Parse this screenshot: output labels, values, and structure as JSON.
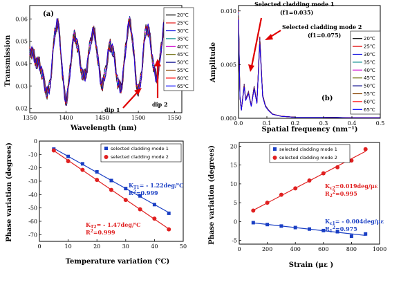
{
  "colors": {
    "c20": "#000000",
    "c25": "#e00000",
    "c30": "#0000dd",
    "c35": "#008888",
    "c40": "#cc00cc",
    "c45": "#666600",
    "c50": "#000088",
    "c55": "#884400",
    "c60": "#ff0000",
    "c65": "#0000ff",
    "mode1": "#1a3fc4",
    "mode2": "#e02020",
    "arrow": "#e00000"
  },
  "temperature_legend": [
    "20℃",
    "25℃",
    "30℃",
    "35℃",
    "40℃",
    "45℃",
    "50℃",
    "55℃",
    "60℃",
    "65℃"
  ],
  "chart_data": [
    {
      "panel": "a",
      "type": "line",
      "panel_label": "(a)",
      "xlabel": "Wavelength (nm)",
      "ylabel": "Transmission",
      "xlim": [
        1350,
        1560
      ],
      "ylim": [
        0.018,
        0.066
      ],
      "xticks": [
        "1350",
        "1400",
        "1450",
        "1500",
        "1550"
      ],
      "yticks": [
        "0.02",
        "0.03",
        "0.04",
        "0.05",
        "0.06"
      ],
      "legend": "top-right",
      "annotations": [
        "dip 1",
        "dip 2"
      ],
      "series": [
        {
          "name": "20℃",
          "x": [
            1350,
            1362,
            1375,
            1388,
            1400,
            1412,
            1425,
            1438,
            1450,
            1462,
            1475,
            1488,
            1500,
            1512,
            1525,
            1538,
            1550
          ],
          "y": [
            0.046,
            0.04,
            0.027,
            0.058,
            0.024,
            0.052,
            0.034,
            0.054,
            0.031,
            0.048,
            0.029,
            0.058,
            0.028,
            0.056,
            0.034,
            0.06,
            0.033
          ]
        }
      ]
    },
    {
      "panel": "b",
      "type": "line",
      "panel_label": "(b)",
      "xlabel": "Spatial frequency (nm⁻¹)",
      "ylabel": "Amplitude",
      "xlim": [
        0,
        0.5
      ],
      "ylim": [
        0,
        0.0105
      ],
      "xticks": [
        "0.0",
        "0.1",
        "0.2",
        "0.3",
        "0.4",
        "0.5"
      ],
      "yticks": [
        "0.000",
        "0.005",
        "0.010"
      ],
      "legend": "top-right",
      "annotations": [
        {
          "line1": "Selected cladding mode 1",
          "line2": "(f1=0.035)"
        },
        {
          "line1": "Selected cladding mode 2",
          "line2": "(f1=0.075)"
        }
      ],
      "series": [
        {
          "name": "20℃",
          "x": [
            0,
            0.005,
            0.01,
            0.02,
            0.025,
            0.035,
            0.045,
            0.055,
            0.065,
            0.075,
            0.085,
            0.095,
            0.105,
            0.12,
            0.15,
            0.2,
            0.3,
            0.4,
            0.5
          ],
          "y": [
            0.0101,
            0.002,
            0.0008,
            0.0032,
            0.0018,
            0.0025,
            0.0012,
            0.003,
            0.0015,
            0.0076,
            0.0022,
            0.0012,
            0.0008,
            0.0004,
            0.0002,
            0.0001,
            0.0001,
            5e-05,
            5e-05
          ]
        }
      ]
    },
    {
      "panel": "c",
      "type": "scatter",
      "xlabel": "Temperature variation (℃)",
      "ylabel": "Phase variation (degrees)",
      "xlim": [
        0,
        50
      ],
      "ylim": [
        -75,
        0
      ],
      "xticks": [
        "0",
        "10",
        "20",
        "30",
        "40",
        "50"
      ],
      "yticks": [
        "0",
        "-10",
        "-20",
        "-30",
        "-40",
        "-50",
        "-60",
        "-70"
      ],
      "legend": "top-right",
      "series": [
        {
          "name": "selected cladding mode 1",
          "marker": "square",
          "x": [
            5,
            10,
            15,
            20,
            25,
            30,
            35,
            40,
            45
          ],
          "y": [
            -6,
            -11.5,
            -17,
            -23,
            -29.5,
            -35.5,
            -41,
            -47.5,
            -54
          ]
        },
        {
          "name": "selected cladding mode 2",
          "marker": "circle",
          "x": [
            5,
            10,
            15,
            20,
            25,
            30,
            35,
            40,
            45
          ],
          "y": [
            -7,
            -15,
            -21.5,
            -29,
            -36.5,
            -44,
            -51,
            -58,
            -66
          ]
        }
      ],
      "annotations": [
        {
          "sub": "T1",
          "text": "= - 1.22deg/℃",
          "r2": "=0.999"
        },
        {
          "sub": "T2",
          "text": "= - 1.47deg/℃",
          "r2": "=0.999"
        }
      ]
    },
    {
      "panel": "d",
      "type": "scatter",
      "xlabel": "Strain  (με )",
      "ylabel": "Phase variation (degrees)",
      "xlim": [
        0,
        1000
      ],
      "ylim": [
        -6,
        21
      ],
      "xticks": [
        "0",
        "200",
        "400",
        "600",
        "800",
        "1000"
      ],
      "yticks": [
        "-5",
        "0",
        "5",
        "10",
        "15",
        "20"
      ],
      "legend": "top-right",
      "series": [
        {
          "name": "selected cladding mode 1",
          "marker": "square",
          "x": [
            100,
            200,
            300,
            400,
            500,
            600,
            700,
            800,
            900
          ],
          "y": [
            -0.3,
            -0.8,
            -1.2,
            -1.6,
            -2.0,
            -2.4,
            -2.7,
            -3.9,
            -3.3
          ]
        },
        {
          "name": "selected cladding mode 2",
          "marker": "circle",
          "x": [
            100,
            200,
            300,
            400,
            500,
            600,
            700,
            800,
            900
          ],
          "y": [
            2.9,
            5.0,
            7.1,
            8.8,
            10.9,
            12.8,
            14.4,
            16.2,
            19.2
          ]
        }
      ],
      "annotations": [
        {
          "sub": "ε2",
          "text": "=0.019deg/με",
          "r2sub": "2",
          "r2": "=0.995"
        },
        {
          "sub": "ε1",
          "text": "= - 0.004deg/με",
          "r2sub": "1",
          "r2": "=0.975"
        }
      ]
    }
  ]
}
